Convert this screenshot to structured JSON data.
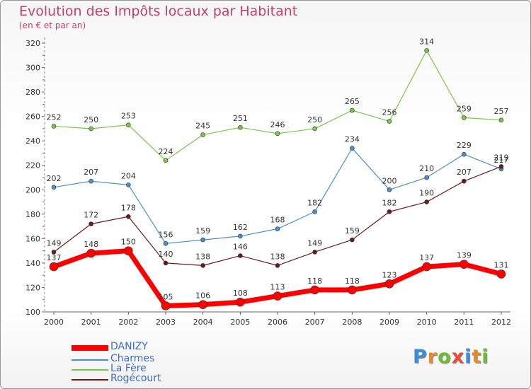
{
  "title": "Evolution des Impôts locaux par Habitant",
  "subtitle": "(en € et par an)",
  "logo": {
    "text": "Proxiti",
    "letters": [
      "P",
      "r",
      "o",
      "x",
      "i",
      "t",
      "i"
    ],
    "colors": [
      "#3b8fd8",
      "#e8892a",
      "#6cbd3a",
      "#e94c3d",
      "#3b8fd8",
      "#e8892a",
      "#6cbd3a"
    ]
  },
  "chart_data": {
    "type": "line",
    "title": "Evolution des Impôts locaux par Habitant",
    "subtitle": "(en € et par an)",
    "xlabel": "",
    "ylabel": "",
    "x": [
      "2000",
      "2001",
      "2002",
      "2003",
      "2004",
      "2005",
      "2006",
      "2007",
      "2008",
      "2009",
      "2010",
      "2011",
      "2012"
    ],
    "ylim": [
      100,
      320
    ],
    "yticks": [
      100,
      120,
      140,
      160,
      180,
      200,
      220,
      240,
      260,
      280,
      300,
      320
    ],
    "grid": false,
    "legend_position": "bottom-left",
    "series": [
      {
        "name": "DANIZY",
        "color": "#ff0000",
        "values": [
          137,
          148,
          150,
          105,
          106,
          108,
          113,
          118,
          118,
          123,
          137,
          139,
          131
        ]
      },
      {
        "name": "Charmes",
        "color": "#4a90cc",
        "values": [
          202,
          207,
          204,
          156,
          159,
          162,
          168,
          182,
          234,
          200,
          210,
          229,
          217
        ]
      },
      {
        "name": "La Fère",
        "color": "#77c843",
        "values": [
          252,
          250,
          253,
          224,
          245,
          251,
          246,
          250,
          265,
          256,
          314,
          259,
          257
        ]
      },
      {
        "name": "Rogécourt",
        "color": "#6b1a1a",
        "values": [
          149,
          172,
          178,
          140,
          138,
          146,
          138,
          149,
          159,
          182,
          190,
          207,
          219
        ]
      }
    ]
  }
}
